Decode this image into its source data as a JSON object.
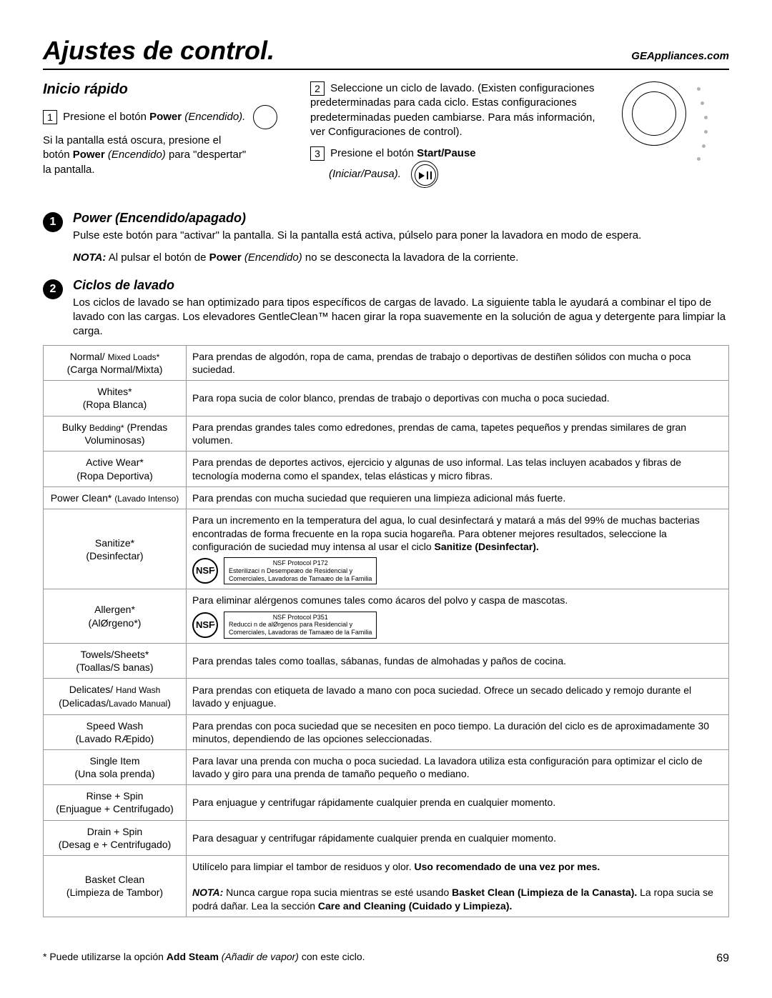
{
  "header": {
    "title": "Ajustes de control.",
    "url": "GEAppliances.com"
  },
  "quick_start": {
    "title": "Inicio rápido",
    "step1_prefix": "Presione el botón ",
    "step1_bold": "Power",
    "step1_italic": " (Encendido).",
    "hint_line1": "Si la pantalla está oscura, presione el",
    "hint_line2_a": "botón ",
    "hint_line2_bold": "Power",
    "hint_line2_italic": " (Encendido) ",
    "hint_line2_b": "para \"despertar\"",
    "hint_line3": "la pantalla.",
    "step2": "Seleccione un ciclo de lavado. (Existen configuraciones predeterminadas para cada ciclo. Estas configuraciones predeterminadas pueden cambiarse. Para más información, ver Configuraciones de control).",
    "step3_prefix": "Presione el botón ",
    "step3_bold": "Start/Pause",
    "step3_italic": "(Iniciar/Pausa)."
  },
  "sections": {
    "s1": {
      "num": "1",
      "title": "Power (Encendido/apagado)",
      "p1": "Pulse este botón para \"activar\" la pantalla. Si la pantalla está activa, púlselo para poner la lavadora en modo de espera.",
      "nota_label": "NOTA:",
      "nota_a": " Al pulsar el botón de ",
      "nota_bold": "Power",
      "nota_italic": " (Encendido) ",
      "nota_b": "no se desconecta la lavadora de la corriente."
    },
    "s2": {
      "num": "2",
      "title": "Ciclos de lavado",
      "p1": "Los ciclos de lavado se han optimizado para tipos específicos de cargas de lavado. La siguiente tabla le ayudará a combinar el tipo de lavado con las cargas. Los elevadores GentleClean™ hacen girar la ropa suavemente en la solución de agua y detergente para limpiar la carga."
    }
  },
  "nsf1": {
    "head": "NSF Protocol P172",
    "l1": "Esterilizaci n Desempeæo de Residencial y",
    "l2": "Comerciales, Lavadoras de Tamaæo de la Familia"
  },
  "nsf2": {
    "head": "NSF Protocol P351",
    "l1": "Reducci n de alØrgenos para Residencial y",
    "l2": "Comerciales, Lavadoras de Tamaæo de la Familia"
  },
  "cycles": [
    {
      "en": "Normal/ <span class='sm'>Mixed Loads*</span>",
      "es": "(Carga Normal/Mixta)",
      "desc": "Para prendas de algodón, ropa de cama, prendas de trabajo o deportivas de destiñen sólidos con mucha o poca suciedad."
    },
    {
      "en": "Whites*",
      "es": "(Ropa Blanca)",
      "desc": "Para ropa sucia de color blanco, prendas de trabajo o deportivas con mucha o poca suciedad."
    },
    {
      "en": "Bulky <span class='sm'>Bedding*</span> (Prendas",
      "es": "Voluminosas)",
      "desc": "Para prendas grandes tales como edredones, prendas de cama, tapetes pequeños y prendas similares de gran volumen."
    },
    {
      "en": "Active Wear*",
      "es": "(Ropa Deportiva)",
      "desc": "Para prendas de deportes activos, ejercicio y algunas de uso informal. Las telas incluyen acabados y fibras de tecnología moderna como el spandex, telas elásticas y micro fibras."
    },
    {
      "en": "Power Clean* <span class='sm'>(Lavado Intenso)</span>",
      "es": "",
      "desc": "Para prendas con mucha suciedad que requieren una limpieza adicional más fuerte."
    },
    {
      "en": "Sanitize*",
      "es": "(Desinfectar)",
      "nsf": 1,
      "desc": "Para un incremento en la temperatura del agua, lo cual desinfectará y matará a más del 99% de muchas bacterias encontradas de forma frecuente en la ropa sucia hogareña. Para obtener mejores resultados, seleccione la configuración de suciedad muy intensa al usar el ciclo <b>Sanitize (Desinfectar).</b>"
    },
    {
      "en": "Allergen*",
      "es": "(AlØrgeno*)",
      "nsf": 2,
      "desc": "Para eliminar alérgenos comunes tales como ácaros del polvo y caspa de mascotas."
    },
    {
      "en": "Towels/Sheets*",
      "es": "(Toallas/S banas)",
      "desc": "Para prendas tales como toallas, sábanas, fundas de almohadas y paños de cocina."
    },
    {
      "en": "Delicates/ <span class='sm'>Hand Wash</span>",
      "es": "(Delicadas/<span class='sm'>Lavado Manual</span>)",
      "desc": "Para prendas con etiqueta de lavado a mano con poca suciedad. Ofrece un secado delicado y remojo durante el lavado y enjuague."
    },
    {
      "en": "Speed Wash",
      "es": "(Lavado RÆpido)",
      "desc": "Para prendas con poca suciedad que se necesiten en poco tiempo. La duración del ciclo es de aproximadamente 30 minutos, dependiendo de las opciones seleccionadas."
    },
    {
      "en": "Single Item",
      "es": "(Una sola prenda)",
      "desc": "Para lavar una prenda con mucha o poca suciedad. La lavadora utiliza esta configuración para optimizar el ciclo de lavado y giro para una prenda de tamaño pequeño o mediano."
    },
    {
      "en": "Rinse + Spin",
      "es": "(Enjuague + Centrifugado)",
      "desc": "Para enjuague y centrifugar rápidamente cualquier prenda en cualquier momento."
    },
    {
      "en": "Drain + Spin",
      "es": "(Desag e + Centrifugado)",
      "desc": "Para desaguar y centrifugar rápidamente cualquier prenda en cualquier momento."
    },
    {
      "en": "Basket Clean",
      "es": "(Limpieza de Tambor)",
      "desc": "Utilícelo para limpiar el tambor de residuos y olor. <b>Uso recomendado de una vez por mes.</b><br><br><b><i>NOTA:</i></b> Nunca cargue ropa sucia mientras se esté usando <b>Basket Clean (Limpieza de la Canasta).</b> La ropa sucia se podrá dañar. Lea la sección <b>Care and Cleaning (Cuidado y Limpieza).</b>"
    }
  ],
  "footnote": {
    "star": "*",
    "a": " Puede utilizarse la opción ",
    "bold": "Add Steam",
    "italic": " (Añadir de vapor) ",
    "b": "con este ciclo."
  },
  "page_number": "69"
}
